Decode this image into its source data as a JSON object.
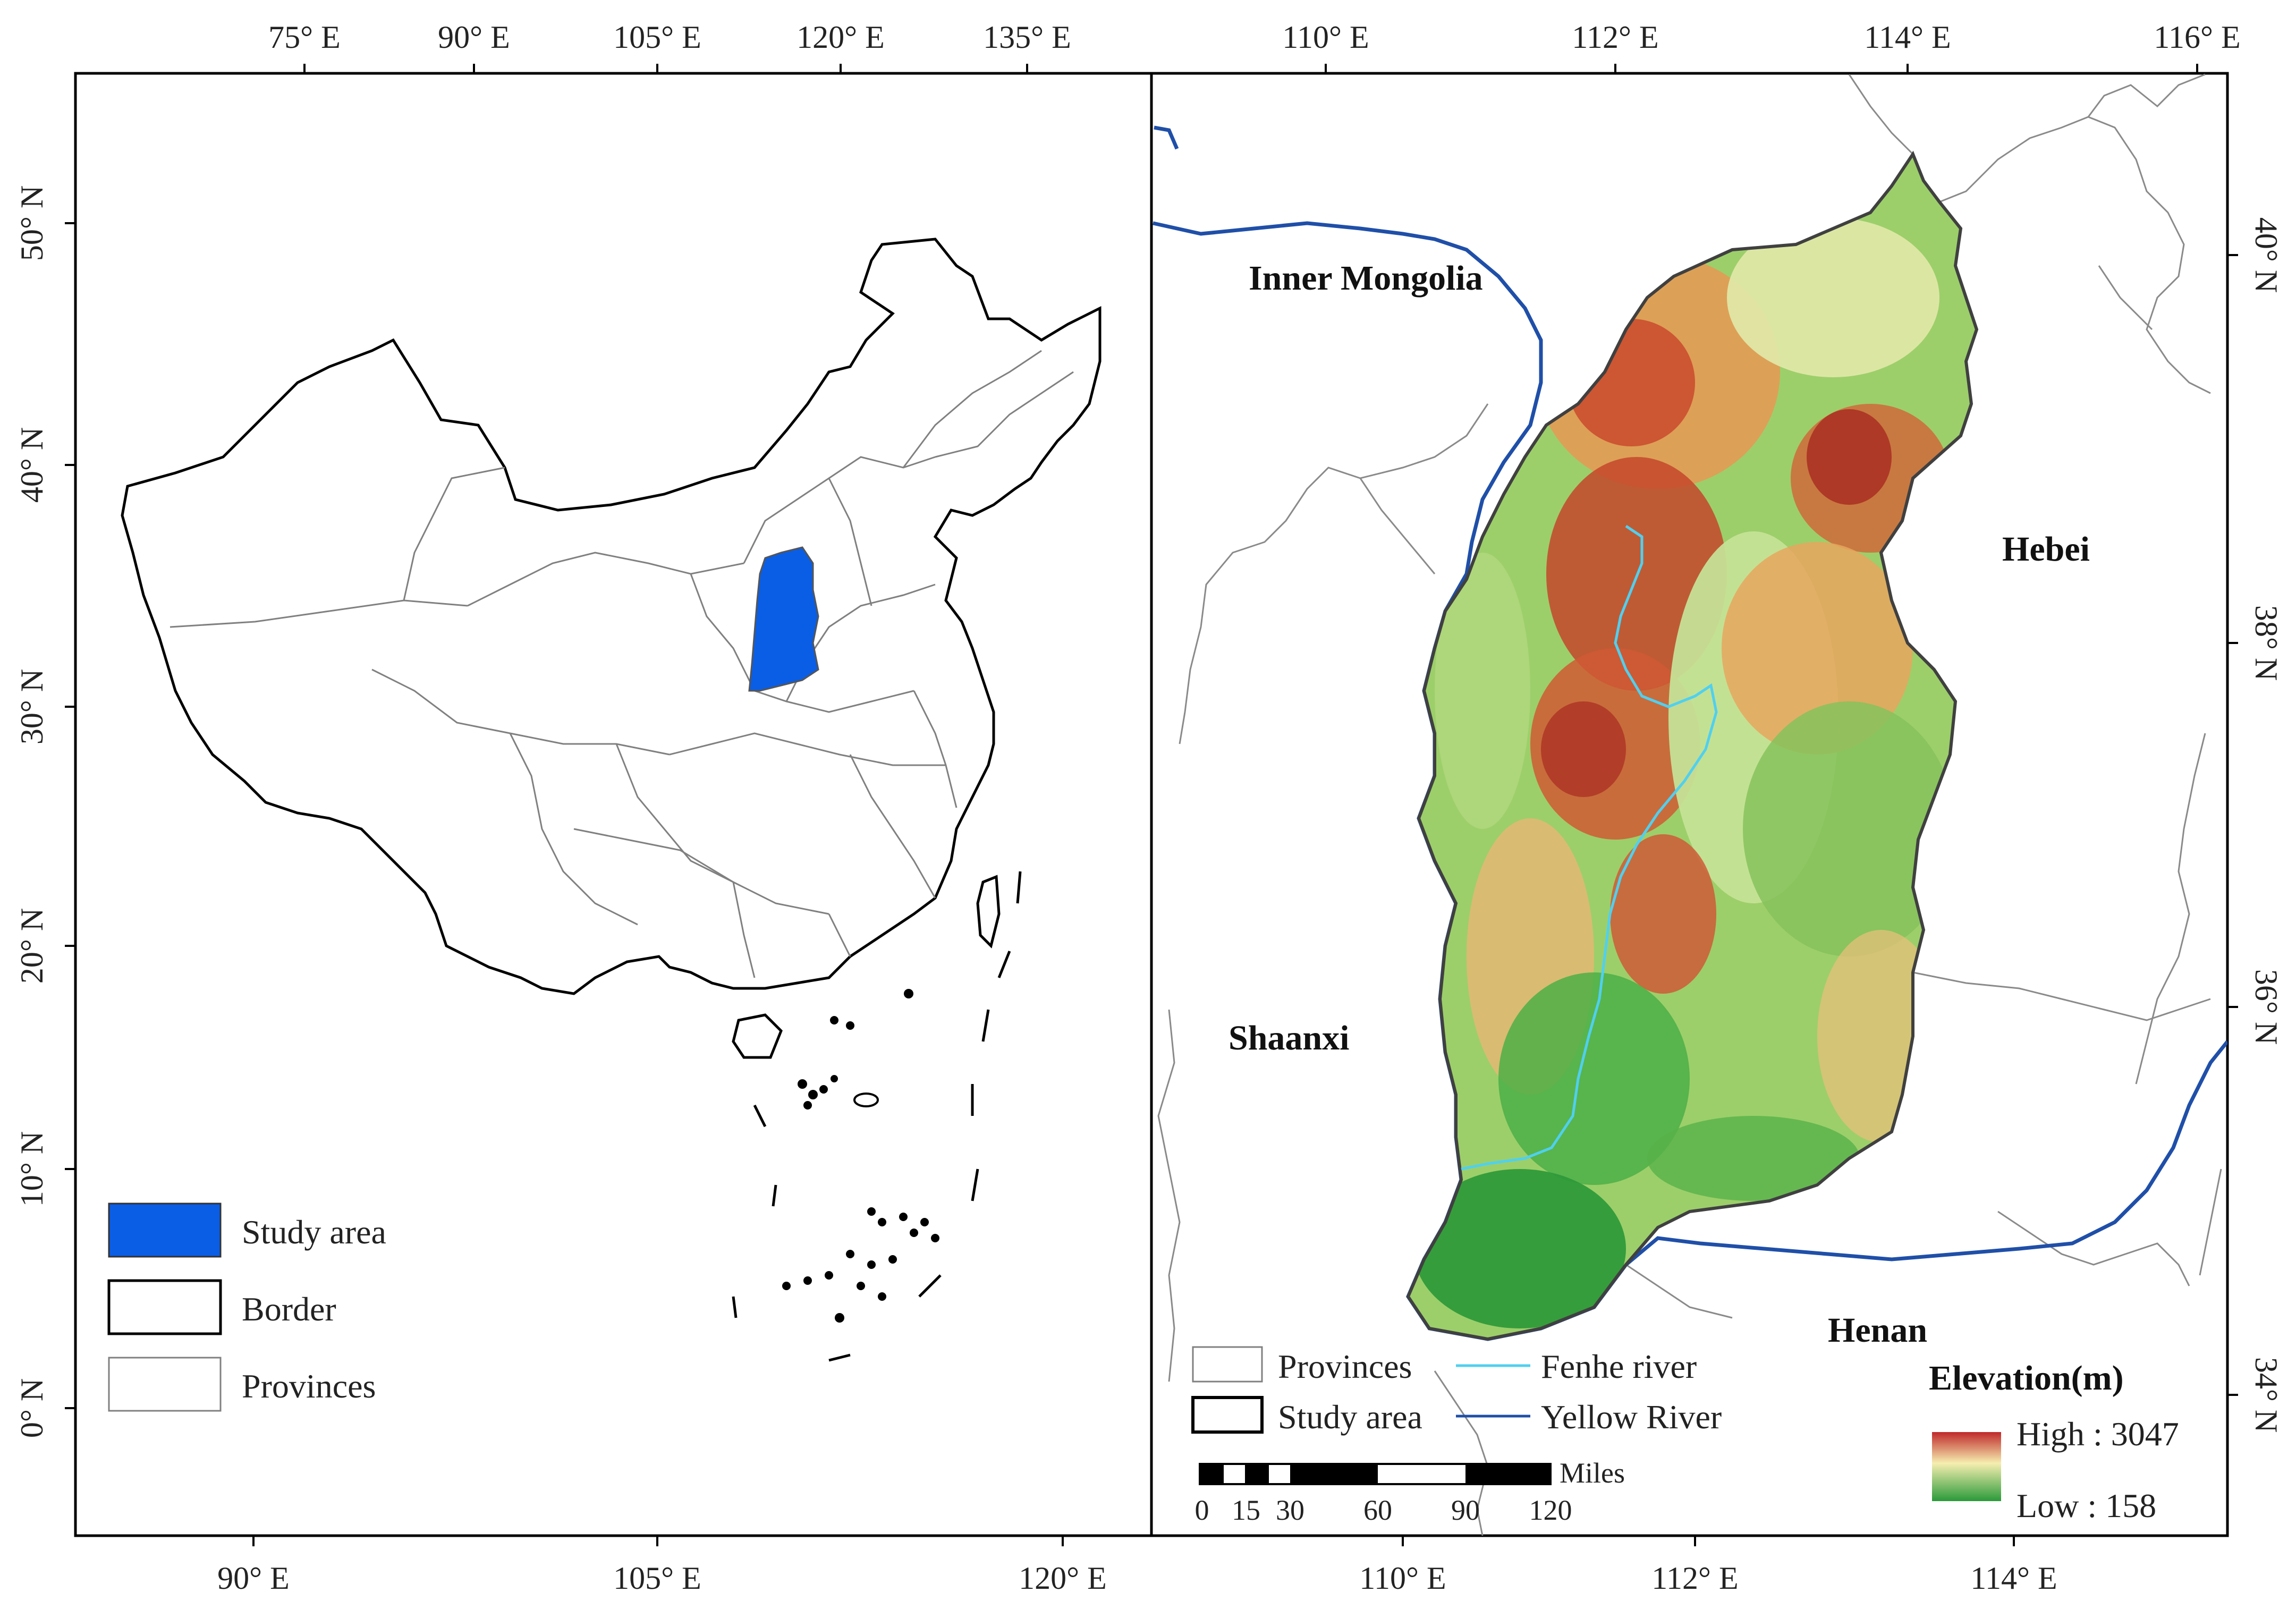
{
  "left_panel": {
    "top_ticks": [
      "75° E",
      "90° E",
      "105° E",
      "120° E",
      "135° E"
    ],
    "bottom_ticks": [
      "90° E",
      "105° E",
      "120° E"
    ],
    "left_ticks": [
      "50° N",
      "40° N",
      "30° N",
      "20° N",
      "10° N",
      "0° N"
    ],
    "legend": {
      "study_area": "Study area",
      "border": "Border",
      "provinces": "Provinces"
    },
    "colors": {
      "study_area": "#0a5ee6",
      "border": "#000000",
      "provinces": "#808080"
    }
  },
  "right_panel": {
    "top_ticks": [
      "110° E",
      "112° E",
      "114° E",
      "116° E"
    ],
    "bottom_ticks": [
      "110° E",
      "112° E",
      "114° E"
    ],
    "right_ticks": [
      "40° N",
      "38° N",
      "36° N",
      "34° N"
    ],
    "regions": {
      "inner_mongolia": "Inner Mongolia",
      "hebei": "Hebei",
      "shaanxi": "Shaanxi",
      "henan": "Henan"
    },
    "legend": {
      "provinces": "Provinces",
      "study_area": "Study area",
      "fenhe": "Fenhe river",
      "yellow": "Yellow River"
    },
    "scale_bar": {
      "unit": "Miles",
      "labels": [
        "0",
        "15",
        "30",
        "60",
        "90",
        "120"
      ]
    },
    "elevation": {
      "title": "Elevation(m)",
      "high": "High : 3047",
      "low": "Low : 158",
      "high_color": "#d7191c",
      "mid_color": "#ffffbf",
      "low_color": "#1a9641"
    },
    "colors": {
      "fenhe": "#4fd0f0",
      "yellow_river": "#1f4fa8",
      "provinces": "#8a8a8a",
      "study_border": "#404040"
    }
  }
}
